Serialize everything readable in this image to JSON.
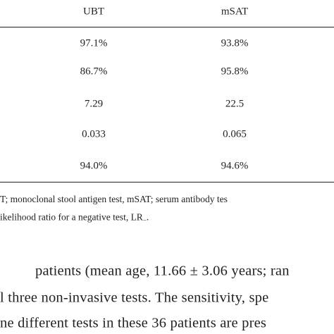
{
  "table": {
    "header": [
      "UBT",
      "mSAT"
    ],
    "rows": [
      [
        "97.1%",
        "93.8%"
      ],
      [
        "86.7%",
        "95.8%"
      ],
      [
        "7.29",
        "22.5"
      ],
      [
        "0.033",
        "0.065"
      ],
      [
        "94.0%",
        "94.6%"
      ]
    ]
  },
  "footnote": {
    "line1": "T; monoclonal stool antigen test, mSAT; serum antibody tes",
    "line2": "ikelihood ratio for a negative test, LR",
    "line2_sub": "−",
    "line2_end": "."
  },
  "paragraph": [
    "patients (mean age, 11.66 ± 3.06 years; ran",
    "l three non-invasive tests. The sensitivity, spe",
    "ne different tests in these 36 patients are pres"
  ]
}
